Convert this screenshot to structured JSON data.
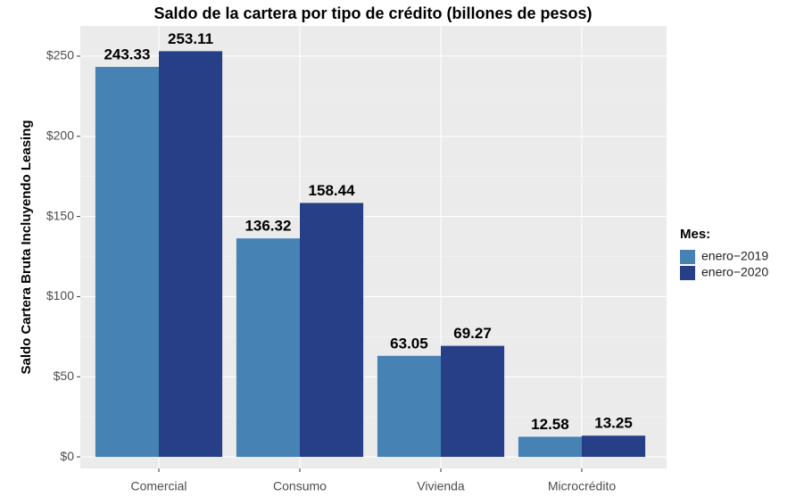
{
  "chart_data": {
    "type": "bar",
    "title": "Saldo de la cartera por tipo de crédito (billones de pesos)",
    "y_label": "Saldo Cartera Bruta Incluyendo Leasing",
    "categories": [
      "Comercial",
      "Consumo",
      "Vivienda",
      "Microcrédito"
    ],
    "legend_title": "Mes:",
    "series": [
      {
        "name": "enero−2019",
        "color": "#4682b4",
        "values": [
          243.33,
          136.32,
          63.05,
          12.58
        ]
      },
      {
        "name": "enero−2020",
        "color": "#273f87",
        "values": [
          253.11,
          158.44,
          69.27,
          13.25
        ]
      }
    ],
    "ylim": [
      -7.2,
      268.9
    ],
    "yticks": [
      {
        "value": 0,
        "label": "$0"
      },
      {
        "value": 50,
        "label": "$50"
      },
      {
        "value": 100,
        "label": "$100"
      },
      {
        "value": 150,
        "label": "$150"
      },
      {
        "value": 200,
        "label": "$200"
      },
      {
        "value": 250,
        "label": "$250"
      }
    ],
    "grid": true,
    "legend_position": "right"
  }
}
